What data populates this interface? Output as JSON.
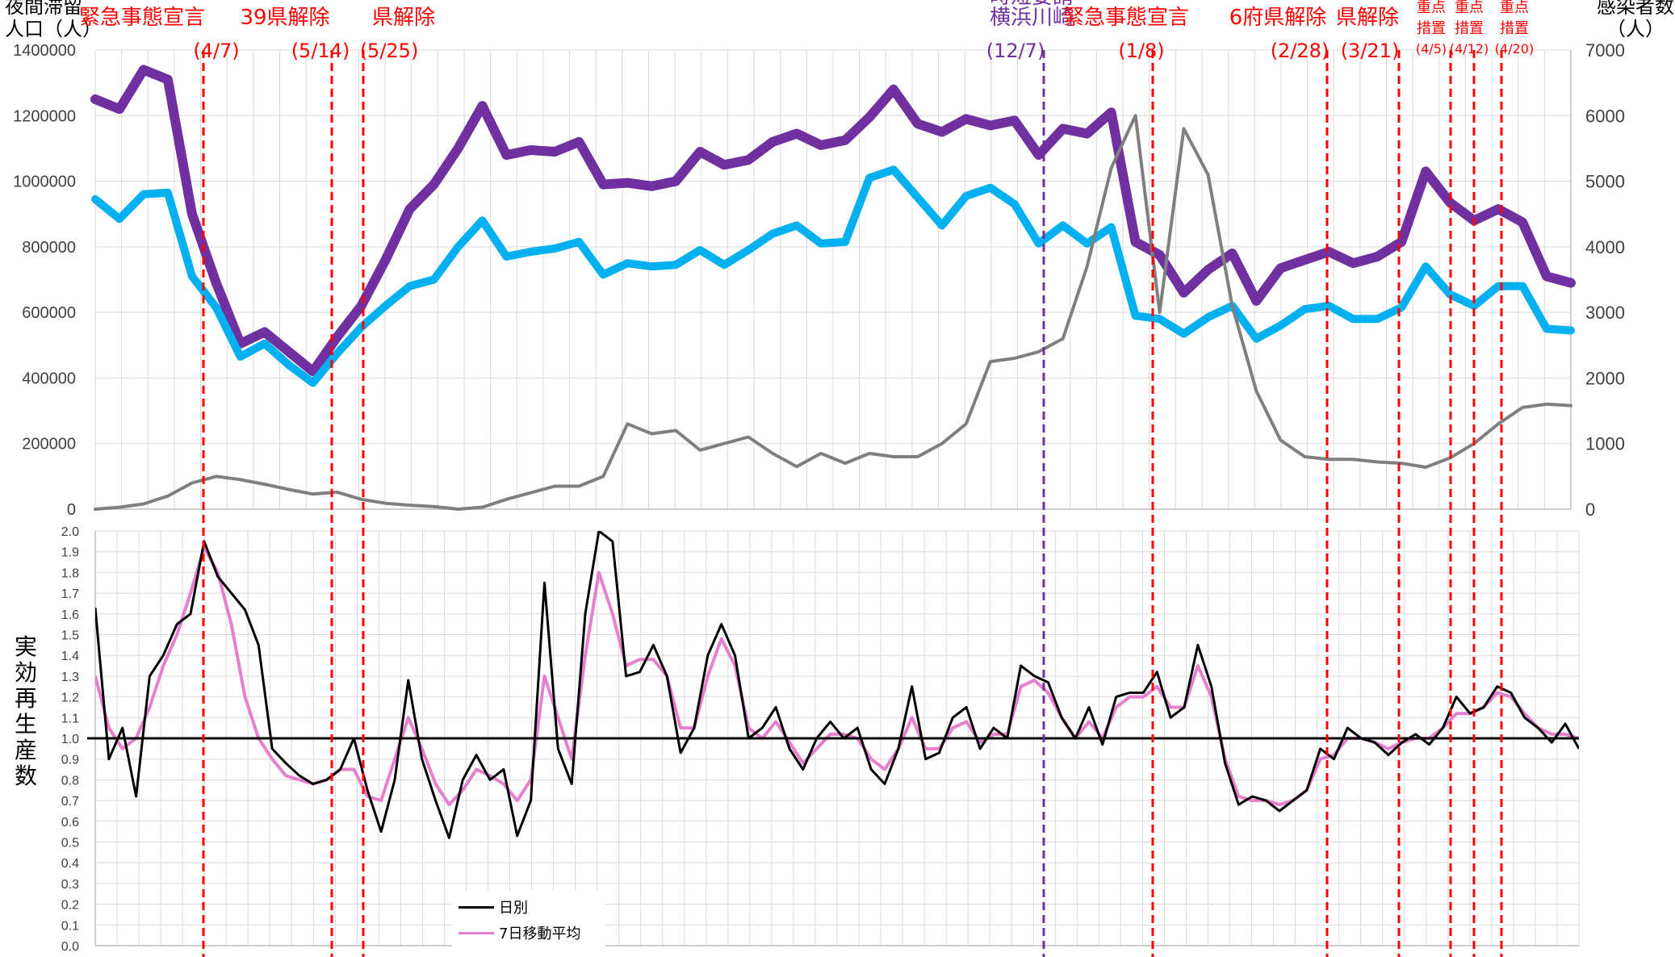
{
  "y_left_label": [
    "夜間滞留",
    "人口（人）"
  ],
  "y_right_label": [
    "感染者数",
    "（人）"
  ],
  "y_bottom_label": [
    "実",
    "効",
    "再",
    "生",
    "産",
    "数"
  ],
  "colors": {
    "purple": "#7030a0",
    "cyan": "#00b0f0",
    "gray": "#7f7f7f",
    "red": "#ff0000",
    "event_purple": "#7030a0",
    "pink": "#e67fce",
    "black": "#000000"
  },
  "annotations": [
    {
      "label": "緊急事態宣言",
      "date": "(4/7)",
      "color": "red",
      "size": "large"
    },
    {
      "label": "39県解除",
      "date": "(5/14)",
      "color": "red",
      "size": "large"
    },
    {
      "label": "県解除",
      "date": "(5/25)",
      "color": "red",
      "size": "large"
    },
    {
      "label": "時短要請",
      "label2": "横浜川崎",
      "date": "(12/7)",
      "color": "purple",
      "size": "large"
    },
    {
      "label": "緊急事態宣言",
      "date": "(1/8)",
      "color": "red",
      "size": "large"
    },
    {
      "label": "6府県解除",
      "date": "(2/28)",
      "color": "red",
      "size": "large"
    },
    {
      "label": "県解除",
      "date": "(3/21)",
      "color": "red",
      "size": "large"
    },
    {
      "label": "重点",
      "label2": "措置",
      "date": "(4/5)",
      "color": "red",
      "size": "small"
    },
    {
      "label": "重点",
      "label2": "措置",
      "date": "(4/12)",
      "color": "red",
      "size": "small"
    },
    {
      "label": "重点",
      "label2": "措置",
      "date": "(4/20)",
      "color": "red",
      "size": "small"
    }
  ],
  "chart_data": [
    {
      "type": "line",
      "y_left_ticks": [
        "0",
        "200000",
        "400000",
        "600000",
        "800000",
        "1000000",
        "1200000",
        "1400000"
      ],
      "y_right_ticks": [
        "0",
        "1000",
        "2000",
        "3000",
        "4000",
        "5000",
        "6000",
        "7000"
      ],
      "ylim_left": [
        0,
        1400000
      ],
      "ylim_right": [
        0,
        7000
      ],
      "grid": true,
      "series": [
        {
          "axis": "left",
          "color": "purple",
          "values": [
            1250000,
            1220000,
            1340000,
            1310000,
            900000,
            690000,
            505000,
            540000,
            480000,
            420000,
            525000,
            620000,
            760000,
            915000,
            990000,
            1100000,
            1230000,
            1080000,
            1095000,
            1090000,
            1120000,
            990000,
            995000,
            985000,
            1000000,
            1090000,
            1050000,
            1065000,
            1120000,
            1145000,
            1110000,
            1125000,
            1195000,
            1280000,
            1175000,
            1150000,
            1190000,
            1170000,
            1185000,
            1080000,
            1160000,
            1145000,
            1210000,
            815000,
            775000,
            660000,
            730000,
            780000,
            635000,
            735000,
            760000,
            785000,
            750000,
            770000,
            815000,
            1030000,
            935000,
            880000,
            915000,
            875000,
            710000,
            690000
          ]
        },
        {
          "axis": "left",
          "color": "cyan",
          "values": [
            945000,
            885000,
            960000,
            965000,
            710000,
            615000,
            465000,
            505000,
            440000,
            385000,
            475000,
            555000,
            620000,
            680000,
            700000,
            800000,
            880000,
            770000,
            785000,
            795000,
            815000,
            715000,
            750000,
            740000,
            745000,
            790000,
            745000,
            790000,
            840000,
            865000,
            810000,
            815000,
            1010000,
            1035000,
            950000,
            865000,
            955000,
            980000,
            930000,
            810000,
            865000,
            810000,
            860000,
            590000,
            580000,
            535000,
            585000,
            620000,
            520000,
            560000,
            610000,
            620000,
            580000,
            580000,
            615000,
            740000,
            655000,
            620000,
            680000,
            680000,
            550000,
            545000
          ]
        },
        {
          "axis": "right",
          "color": "gray",
          "values": [
            0,
            30,
            80,
            200,
            400,
            500,
            450,
            380,
            300,
            230,
            260,
            150,
            90,
            60,
            40,
            0,
            30,
            150,
            250,
            350,
            350,
            500,
            1300,
            1150,
            1200,
            900,
            1000,
            1100,
            850,
            650,
            850,
            700,
            850,
            800,
            800,
            1000,
            1300,
            2250,
            2300,
            2400,
            2600,
            3700,
            5200,
            6000,
            3000,
            5800,
            5100,
            3100,
            1800,
            1050,
            800,
            760,
            760,
            720,
            700,
            640,
            780,
            1000,
            1300,
            1550,
            1600,
            1580
          ]
        }
      ]
    },
    {
      "type": "line",
      "y_ticks": [
        "0.0",
        "0.1",
        "0.2",
        "0.3",
        "0.4",
        "0.5",
        "0.6",
        "0.7",
        "0.8",
        "0.9",
        "1.0",
        "1.1",
        "1.2",
        "1.3",
        "1.4",
        "1.5",
        "1.6",
        "1.7",
        "1.8",
        "1.9",
        "2.0"
      ],
      "ylim": [
        0,
        2.0
      ],
      "reference_line": 1.0,
      "grid": true,
      "legend": [
        "日別",
        "7日移動平均"
      ],
      "legend_position": "bottom-left",
      "series": [
        {
          "name": "日別",
          "color": "black",
          "values": [
            1.63,
            0.9,
            1.05,
            0.72,
            1.3,
            1.4,
            1.55,
            1.6,
            1.95,
            1.78,
            1.7,
            1.62,
            1.45,
            0.95,
            0.88,
            0.82,
            0.78,
            0.8,
            0.85,
            1.0,
            0.75,
            0.55,
            0.8,
            1.28,
            0.9,
            0.7,
            0.52,
            0.8,
            0.92,
            0.8,
            0.85,
            0.53,
            0.7,
            1.75,
            0.95,
            0.78,
            1.6,
            2.0,
            1.95,
            1.3,
            1.32,
            1.45,
            1.3,
            0.93,
            1.05,
            1.4,
            1.55,
            1.4,
            1.0,
            1.05,
            1.15,
            0.95,
            0.85,
            1.0,
            1.08,
            1.0,
            1.05,
            0.85,
            0.78,
            0.95,
            1.25,
            0.9,
            0.93,
            1.1,
            1.15,
            0.95,
            1.05,
            1.0,
            1.35,
            1.3,
            1.27,
            1.1,
            1.0,
            1.15,
            0.97,
            1.2,
            1.22,
            1.22,
            1.32,
            1.1,
            1.15,
            1.45,
            1.25,
            0.88,
            0.68,
            0.72,
            0.7,
            0.65,
            0.7,
            0.75,
            0.95,
            0.9,
            1.05,
            1.0,
            0.98,
            0.92,
            0.98,
            1.02,
            0.97,
            1.05,
            1.2,
            1.12,
            1.15,
            1.25,
            1.22,
            1.1,
            1.05,
            0.98,
            1.07,
            0.95
          ]
        },
        {
          "name": "7日移動平均",
          "color": "pink",
          "values": [
            1.3,
            1.05,
            0.95,
            1.0,
            1.15,
            1.35,
            1.5,
            1.7,
            1.92,
            1.8,
            1.55,
            1.2,
            1.0,
            0.9,
            0.82,
            0.8,
            0.78,
            0.8,
            0.85,
            0.85,
            0.72,
            0.7,
            0.9,
            1.1,
            0.95,
            0.78,
            0.68,
            0.75,
            0.85,
            0.82,
            0.78,
            0.7,
            0.8,
            1.3,
            1.1,
            0.9,
            1.4,
            1.8,
            1.6,
            1.35,
            1.38,
            1.38,
            1.3,
            1.05,
            1.05,
            1.3,
            1.48,
            1.35,
            1.05,
            1.0,
            1.08,
            0.98,
            0.88,
            0.95,
            1.02,
            1.02,
            1.0,
            0.9,
            0.85,
            0.95,
            1.1,
            0.95,
            0.95,
            1.05,
            1.08,
            0.98,
            1.02,
            1.02,
            1.25,
            1.28,
            1.22,
            1.1,
            1.0,
            1.08,
            1.0,
            1.15,
            1.2,
            1.2,
            1.25,
            1.15,
            1.15,
            1.35,
            1.2,
            0.9,
            0.72,
            0.7,
            0.7,
            0.68,
            0.7,
            0.75,
            0.9,
            0.92,
            1.0,
            1.0,
            0.98,
            0.95,
            0.98,
            1.0,
            1.0,
            1.05,
            1.12,
            1.12,
            1.15,
            1.22,
            1.2,
            1.12,
            1.05,
            1.02,
            1.02,
            1.0
          ]
        }
      ]
    }
  ]
}
